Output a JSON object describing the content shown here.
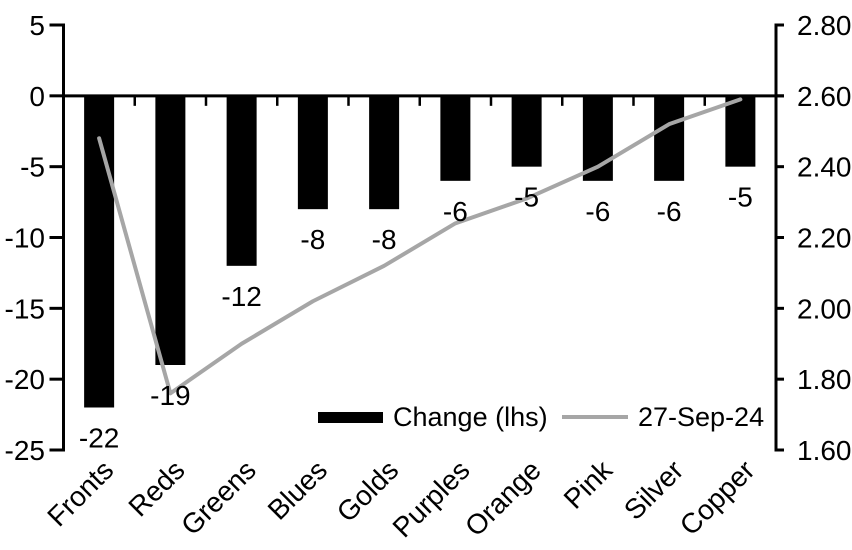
{
  "chart_data": {
    "type": "combo-bar-line",
    "title": "",
    "categories": [
      "Fronts",
      "Reds",
      "Greens",
      "Blues",
      "Golds",
      "Purples",
      "Orange",
      "Pink",
      "Silver",
      "Copper"
    ],
    "series": [
      {
        "name": "Change (lhs)",
        "type": "bar",
        "axis": "left",
        "color": "#000000",
        "values": [
          -22,
          -19,
          -12,
          -8,
          -8,
          -6,
          -5,
          -6,
          -6,
          -5
        ],
        "data_labels": [
          "-22",
          "-19",
          "-12",
          "-8",
          "-8",
          "-6",
          "-5",
          "-6",
          "-6",
          "-5"
        ]
      },
      {
        "name": "27-Sep-24",
        "type": "line",
        "axis": "right",
        "color": "#a6a6a6",
        "values": [
          2.48,
          1.76,
          1.9,
          2.02,
          2.12,
          2.24,
          2.31,
          2.4,
          2.52,
          2.59
        ]
      }
    ],
    "left_axis": {
      "min": -25,
      "max": 5,
      "tick_labels": [
        "5",
        "0",
        "-5",
        "-10",
        "-15",
        "-20",
        "-25"
      ]
    },
    "right_axis": {
      "min": 1.6,
      "max": 2.8,
      "tick_labels": [
        "2.80",
        "2.60",
        "2.40",
        "2.20",
        "2.00",
        "1.80",
        "1.60"
      ]
    },
    "legend": {
      "position": "bottom-inside",
      "items": [
        {
          "label": "Change (lhs)",
          "swatch": "bar",
          "color": "#000000"
        },
        {
          "label": "27-Sep-24",
          "swatch": "line",
          "color": "#a6a6a6"
        }
      ]
    },
    "grid": false,
    "axis_color": "#000000"
  }
}
